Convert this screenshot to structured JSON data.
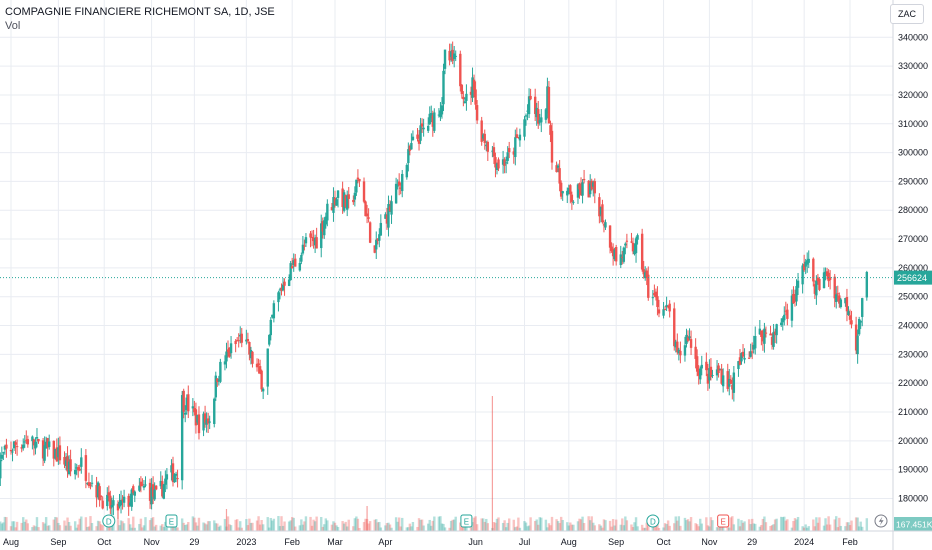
{
  "header": {
    "title": "COMPAGNIE FINANCIERE RICHEMONT SA, 1D, JSE",
    "volume_label": "Vol",
    "currency": "ZAC"
  },
  "colors": {
    "up": "#26a69a",
    "down": "#ef5350",
    "grid": "#e9ecf2",
    "price_line": "#26a69a",
    "text": "#131722"
  },
  "events": [
    {
      "type": "D",
      "date": "2022-10-04",
      "color": "#26a69a"
    },
    {
      "type": "E",
      "date": "2022-11-14",
      "color": "#26a69a"
    },
    {
      "type": "E",
      "date": "2023-05-26",
      "color": "#26a69a"
    },
    {
      "type": "D",
      "date": "2023-09-25",
      "color": "#26a69a"
    },
    {
      "type": "E",
      "date": "2023-11-10",
      "color": "#ef5350"
    }
  ],
  "events_icon": "flash-icon",
  "chart_data": {
    "type": "candlestick",
    "title": "COMPAGNIE FINANCIERE RICHEMONT SA, 1D, JSE",
    "y_axis": {
      "ticks": [
        180000,
        190000,
        200000,
        210000,
        220000,
        230000,
        240000,
        250000,
        260000,
        270000,
        280000,
        290000,
        300000,
        310000,
        320000,
        330000,
        340000
      ],
      "range": [
        176000,
        346000
      ]
    },
    "x_axis": {
      "labels": [
        {
          "label": "Aug",
          "date": "2022-08-01"
        },
        {
          "label": "Sep",
          "date": "2022-09-01"
        },
        {
          "label": "Oct",
          "date": "2022-10-01"
        },
        {
          "label": "Nov",
          "date": "2022-11-01"
        },
        {
          "label": "29",
          "date": "2022-11-29"
        },
        {
          "label": "2023",
          "date": "2023-01-02"
        },
        {
          "label": "Feb",
          "date": "2023-02-01"
        },
        {
          "label": "Mar",
          "date": "2023-03-01"
        },
        {
          "label": "Apr",
          "date": "2023-04-03"
        },
        {
          "label": "Jun",
          "date": "2023-06-01"
        },
        {
          "label": "Jul",
          "date": "2023-07-03"
        },
        {
          "label": "Aug",
          "date": "2023-08-01"
        },
        {
          "label": "Sep",
          "date": "2023-09-01"
        },
        {
          "label": "Oct",
          "date": "2023-10-02"
        },
        {
          "label": "Nov",
          "date": "2023-11-01"
        },
        {
          "label": "29",
          "date": "2023-11-29"
        },
        {
          "label": "2024",
          "date": "2024-01-02"
        },
        {
          "label": "Feb",
          "date": "2024-02-01"
        }
      ]
    },
    "last_price": 256624,
    "last_volume_label": "167.451K",
    "close_series": [
      [
        "2022-07-22",
        191000
      ],
      [
        "2022-07-29",
        196000
      ],
      [
        "2022-08-05",
        199000
      ],
      [
        "2022-08-12",
        200500
      ],
      [
        "2022-08-19",
        198000
      ],
      [
        "2022-08-26",
        196500
      ],
      [
        "2022-09-02",
        195000
      ],
      [
        "2022-09-09",
        189000
      ],
      [
        "2022-09-16",
        192000
      ],
      [
        "2022-09-23",
        186000
      ],
      [
        "2022-09-30",
        180000
      ],
      [
        "2022-10-07",
        176000
      ],
      [
        "2022-10-14",
        178000
      ],
      [
        "2022-10-21",
        181000
      ],
      [
        "2022-10-28",
        184000
      ],
      [
        "2022-11-04",
        180000
      ],
      [
        "2022-11-11",
        187000
      ],
      [
        "2022-11-18",
        190000
      ],
      [
        "2022-11-21",
        214000
      ],
      [
        "2022-11-25",
        212000
      ],
      [
        "2022-12-02",
        206000
      ],
      [
        "2022-12-09",
        208000
      ],
      [
        "2022-12-14",
        223000
      ],
      [
        "2022-12-21",
        230000
      ],
      [
        "2022-12-30",
        236000
      ],
      [
        "2023-01-06",
        228000
      ],
      [
        "2023-01-13",
        220000
      ],
      [
        "2023-01-20",
        246000
      ],
      [
        "2023-01-27",
        256000
      ],
      [
        "2023-02-03",
        262000
      ],
      [
        "2023-02-10",
        268000
      ],
      [
        "2023-02-17",
        270000
      ],
      [
        "2023-02-24",
        280000
      ],
      [
        "2023-03-03",
        286000
      ],
      [
        "2023-03-10",
        281000
      ],
      [
        "2023-03-17",
        291000
      ],
      [
        "2023-03-24",
        272000
      ],
      [
        "2023-03-27",
        264000
      ],
      [
        "2023-03-31",
        274000
      ],
      [
        "2023-04-07",
        282000
      ],
      [
        "2023-04-14",
        292000
      ],
      [
        "2023-04-21",
        303000
      ],
      [
        "2023-04-28",
        308000
      ],
      [
        "2023-05-05",
        313000
      ],
      [
        "2023-05-10",
        318000
      ],
      [
        "2023-05-12",
        333000
      ],
      [
        "2023-05-19",
        331000
      ],
      [
        "2023-05-26",
        318000
      ],
      [
        "2023-05-31",
        325000
      ],
      [
        "2023-06-02",
        310000
      ],
      [
        "2023-06-09",
        303000
      ],
      [
        "2023-06-16",
        296000
      ],
      [
        "2023-06-23",
        298000
      ],
      [
        "2023-06-30",
        306000
      ],
      [
        "2023-07-07",
        318000
      ],
      [
        "2023-07-14",
        309000
      ],
      [
        "2023-07-18",
        320000
      ],
      [
        "2023-07-21",
        300000
      ],
      [
        "2023-07-28",
        286000
      ],
      [
        "2023-08-04",
        284000
      ],
      [
        "2023-08-11",
        288000
      ],
      [
        "2023-08-18",
        286000
      ],
      [
        "2023-08-25",
        275000
      ],
      [
        "2023-09-01",
        263000
      ],
      [
        "2023-09-08",
        266000
      ],
      [
        "2023-09-15",
        268000
      ],
      [
        "2023-09-22",
        252000
      ],
      [
        "2023-09-29",
        247000
      ],
      [
        "2023-10-06",
        244000
      ],
      [
        "2023-10-11",
        228000
      ],
      [
        "2023-10-18",
        237000
      ],
      [
        "2023-10-25",
        225000
      ],
      [
        "2023-11-01",
        222000
      ],
      [
        "2023-11-08",
        224000
      ],
      [
        "2023-11-15",
        219000
      ],
      [
        "2023-11-22",
        228000
      ],
      [
        "2023-11-29",
        233000
      ],
      [
        "2023-12-06",
        238000
      ],
      [
        "2023-12-13",
        236000
      ],
      [
        "2023-12-20",
        244000
      ],
      [
        "2023-12-27",
        250000
      ],
      [
        "2024-01-03",
        263000
      ],
      [
        "2024-01-10",
        253000
      ],
      [
        "2024-01-17",
        258000
      ],
      [
        "2024-01-24",
        250000
      ],
      [
        "2024-01-31",
        247000
      ],
      [
        "2024-02-05",
        234000
      ],
      [
        "2024-02-08",
        243000
      ],
      [
        "2024-02-12",
        256624
      ]
    ],
    "volume_spikes": [
      [
        "2022-12-20",
        22000
      ],
      [
        "2023-03-22",
        25000
      ],
      [
        "2023-06-12",
        135000
      ]
    ]
  }
}
